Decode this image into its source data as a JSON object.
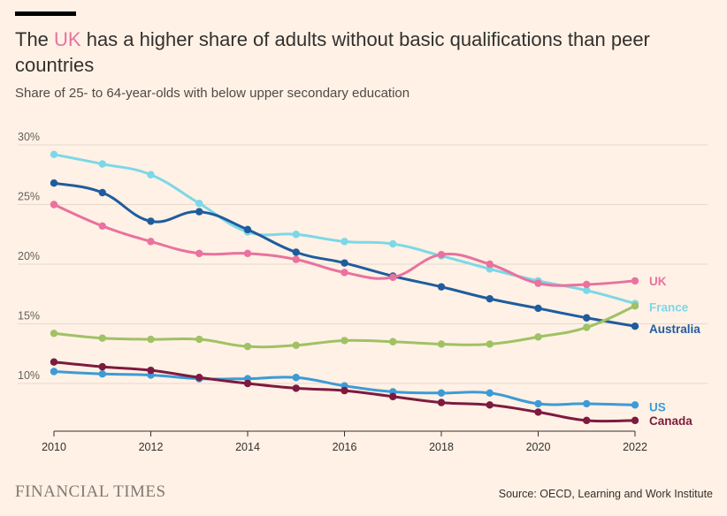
{
  "header": {
    "title_before": "The ",
    "title_highlight": "UK",
    "title_after": " has a higher share of adults without basic qualifications than peer countries",
    "subtitle": "Share of 25- to 64-year-olds with below upper secondary education"
  },
  "footer": {
    "logo": "FINANCIAL TIMES",
    "source": "Source: OECD, Learning and Work Institute"
  },
  "colors": {
    "background": "#FFF1E5",
    "grid": "#E6D9CE",
    "highlight": "#E9729E"
  },
  "chart_data": {
    "type": "line",
    "title": "The UK has a higher share of adults without basic qualifications than peer countries",
    "subtitle": "Share of 25- to 64-year-olds with below upper secondary education",
    "xlim": [
      2010,
      2022
    ],
    "ylim": [
      6,
      30
    ],
    "x_ticks": [
      2010,
      2012,
      2014,
      2016,
      2018,
      2020,
      2022
    ],
    "x_tick_labels": [
      "2010",
      "2012",
      "2014",
      "2016",
      "2018",
      "2020",
      "2022"
    ],
    "y_ticks": [
      10,
      15,
      20,
      25,
      30
    ],
    "y_tick_labels": [
      "10%",
      "15%",
      "20%",
      "25%",
      "30%"
    ],
    "grid": true,
    "legend": "direct labels at right end of lines",
    "x": [
      2010,
      2011,
      2012,
      2013,
      2014,
      2015,
      2016,
      2017,
      2018,
      2019,
      2020,
      2021,
      2022
    ],
    "series": [
      {
        "name": "France",
        "color": "#7CD8E6",
        "values": [
          29.2,
          28.4,
          27.5,
          25.1,
          22.7,
          22.5,
          21.9,
          21.7,
          20.7,
          19.6,
          18.6,
          17.8,
          16.7
        ]
      },
      {
        "name": "Australia",
        "color": "#1F5C9E",
        "values": [
          26.8,
          26.0,
          23.6,
          24.4,
          22.9,
          21.0,
          20.1,
          19.0,
          18.1,
          17.1,
          16.3,
          15.5,
          14.8
        ]
      },
      {
        "name": "UK",
        "color": "#E9729E",
        "values": [
          25.0,
          23.2,
          21.9,
          20.9,
          20.9,
          20.4,
          19.3,
          18.9,
          20.8,
          20.0,
          18.4,
          18.3,
          18.6
        ]
      },
      {
        "name": "",
        "color": "#9FC264",
        "values": [
          14.2,
          13.8,
          13.7,
          13.7,
          13.1,
          13.2,
          13.6,
          13.5,
          13.3,
          13.3,
          13.9,
          14.7,
          16.5
        ]
      },
      {
        "name": "US",
        "color": "#3C9BD6",
        "values": [
          11.0,
          10.8,
          10.7,
          10.4,
          10.4,
          10.5,
          9.8,
          9.3,
          9.2,
          9.2,
          8.3,
          8.3,
          8.2
        ]
      },
      {
        "name": "Canada",
        "color": "#7D1A3F",
        "values": [
          11.8,
          11.4,
          11.1,
          10.5,
          10.0,
          9.6,
          9.4,
          8.9,
          8.4,
          8.2,
          7.6,
          6.9,
          6.9
        ]
      }
    ]
  }
}
